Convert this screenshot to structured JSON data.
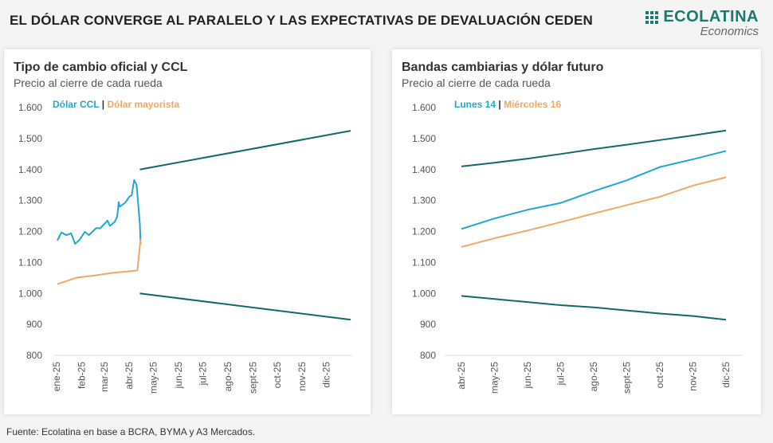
{
  "header": {
    "title": "EL DÓLAR CONVERGE AL PARALELO Y LAS EXPECTATIVAS DE DEVALUACIÓN CEDEN"
  },
  "logo": {
    "name": "ECOLATINA",
    "sub": "Economics",
    "color": "#1a7a6e"
  },
  "footer": "Fuente: Ecolatina en base a BCRA, BYMA y A3 Mercados.",
  "colors": {
    "blue": "#1fa8d4",
    "orange": "#f2a765",
    "band": "#11696a"
  },
  "chart_data": [
    {
      "type": "line",
      "title": "Tipo de cambio oficial y CCL",
      "subtitle": "Precio al cierre de cada rueda",
      "ylim": [
        800,
        1600
      ],
      "yticks": [
        "1.600",
        "1.500",
        "1.400",
        "1.300",
        "1.200",
        "1.100",
        "1.000",
        "900",
        "800"
      ],
      "xticks": [
        "ene-25",
        "feb-25",
        "mar-25",
        "abr-25",
        "may-25",
        "jun-25",
        "jul-25",
        "ago-25",
        "sept-25",
        "oct-25",
        "nov-25",
        "dic-25"
      ],
      "legend_sep": "|",
      "series": [
        {
          "name": "Dólar CCL",
          "color": "#1fa8d4",
          "points": [
            [
              "2025-01-02",
              1171
            ],
            [
              "2025-01-07",
              1197
            ],
            [
              "2025-01-13",
              1188
            ],
            [
              "2025-01-19",
              1194
            ],
            [
              "2025-01-24",
              1160
            ],
            [
              "2025-01-30",
              1175
            ],
            [
              "2025-02-05",
              1199
            ],
            [
              "2025-02-10",
              1188
            ],
            [
              "2025-02-19",
              1211
            ],
            [
              "2025-02-24",
              1210
            ],
            [
              "2025-03-05",
              1235
            ],
            [
              "2025-03-08",
              1218
            ],
            [
              "2025-03-14",
              1231
            ],
            [
              "2025-03-17",
              1248
            ],
            [
              "2025-03-19",
              1295
            ],
            [
              "2025-03-20",
              1280
            ],
            [
              "2025-03-27",
              1293
            ],
            [
              "2025-04-01",
              1312
            ],
            [
              "2025-04-04",
              1317
            ],
            [
              "2025-04-07",
              1366
            ],
            [
              "2025-04-10",
              1351
            ],
            [
              "2025-04-11",
              1321
            ],
            [
              "2025-04-14",
              1227
            ],
            [
              "2025-04-15",
              1158
            ]
          ]
        },
        {
          "name": "Dólar mayorista",
          "color": "#f2a765",
          "points": [
            [
              "2025-01-02",
              1030
            ],
            [
              "2025-01-26",
              1051
            ],
            [
              "2025-02-15",
              1057
            ],
            [
              "2025-03-10",
              1066
            ],
            [
              "2025-04-11",
              1074
            ],
            [
              "2025-04-15",
              1175
            ]
          ]
        },
        {
          "color": "#11696a",
          "points": [
            [
              "2025-04-14",
              1400
            ],
            [
              "2025-12-31",
              1525
            ]
          ]
        },
        {
          "color": "#11696a",
          "points": [
            [
              "2025-04-14",
              1000
            ],
            [
              "2025-12-31",
              915
            ]
          ]
        }
      ]
    },
    {
      "type": "line",
      "title": "Bandas cambiarias y dólar futuro",
      "subtitle": "Precio al cierre de cada rueda",
      "ylim": [
        800,
        1600
      ],
      "yticks": [
        "1.600",
        "1.500",
        "1.400",
        "1.300",
        "1.200",
        "1.100",
        "1.000",
        "900",
        "800"
      ],
      "categories": [
        "abr-25",
        "may-25",
        "jun-25",
        "jul-25",
        "ago-25",
        "sept-25",
        "oct-25",
        "nov-25",
        "dic-25"
      ],
      "legend_sep": "|",
      "series": [
        {
          "color": "#11696a",
          "values": [
            1410,
            1422,
            1435,
            1450,
            1466,
            1480,
            1495,
            1510,
            1526
          ]
        },
        {
          "name": "Lunes 14",
          "color": "#1fa8d4",
          "values": [
            1208,
            1242,
            1270,
            1292,
            1330,
            1365,
            1408,
            1433,
            1460
          ]
        },
        {
          "name": "Miércoles 16",
          "color": "#f2a765",
          "values": [
            1150,
            1178,
            1203,
            1230,
            1258,
            1285,
            1312,
            1348,
            1375
          ]
        },
        {
          "color": "#11696a",
          "values": [
            992,
            982,
            972,
            962,
            955,
            945,
            935,
            927,
            915
          ]
        }
      ]
    }
  ]
}
